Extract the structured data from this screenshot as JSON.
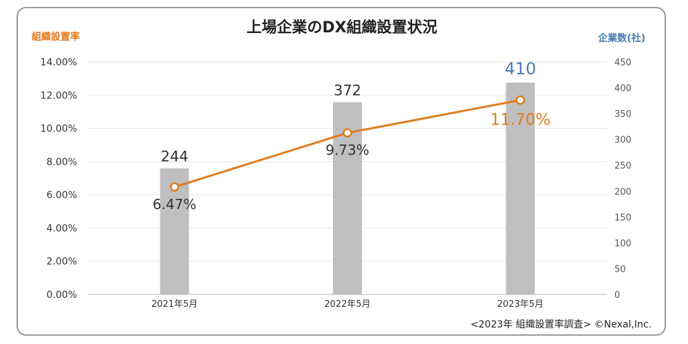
{
  "chart_data": {
    "type": "bar",
    "title": "上場企業のDX組織設置状況",
    "categories": [
      "2021年5月",
      "2022年5月",
      "2023年5月"
    ],
    "series": [
      {
        "name": "企業数(社)",
        "type": "bar",
        "axis": "right",
        "values": [
          244,
          372,
          410
        ],
        "labels": [
          "244",
          "372",
          "410"
        ],
        "color": "#bfbfbf",
        "highlight_label_color": "#4a7ab5"
      },
      {
        "name": "組織設置率",
        "type": "line",
        "axis": "left",
        "values": [
          6.47,
          9.73,
          11.7
        ],
        "labels": [
          "6.47%",
          "9.73%",
          "11.70%"
        ],
        "color": "#e07b1f",
        "highlight_label_color": "#e07b1f"
      }
    ],
    "left_axis": {
      "label": "組織設置率",
      "range": [
        0,
        14
      ],
      "ticks": [
        "0.00%",
        "2.00%",
        "4.00%",
        "6.00%",
        "8.00%",
        "10.00%",
        "12.00%",
        "14.00%"
      ],
      "color": "#e07b1f"
    },
    "right_axis": {
      "label": "企業数(社)",
      "range": [
        0,
        450
      ],
      "ticks": [
        "0",
        "50",
        "100",
        "150",
        "200",
        "250",
        "300",
        "350",
        "400",
        "450"
      ],
      "color": "#4a7ab5"
    },
    "grid": true,
    "footer": "<2023年 組織設置率調査> ©Nexal,Inc."
  }
}
